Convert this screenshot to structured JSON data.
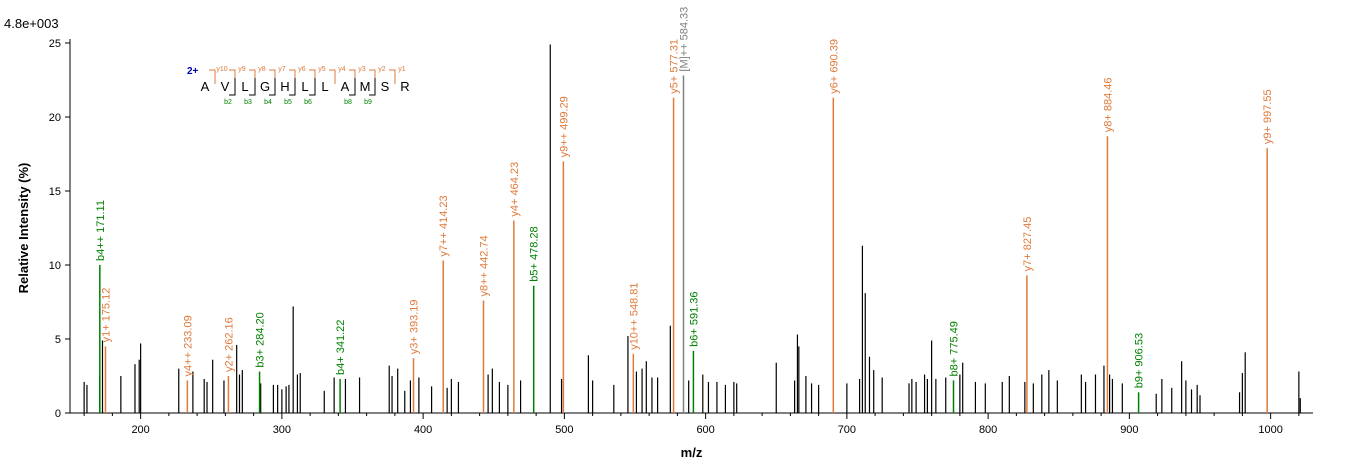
{
  "scale_label": "4.8e+003",
  "colors": {
    "b": "#008000",
    "y": "#e07a3c",
    "precursor": "#808080",
    "unassigned": "#000000",
    "charge": "#0000b0"
  },
  "sequence": {
    "charge": "2+",
    "residues": [
      "A",
      "V",
      "L",
      "G",
      "H",
      "L",
      "L",
      "A",
      "M",
      "S",
      "R"
    ],
    "y_ions": [
      [
        "y10",
        1
      ],
      [
        "y9",
        2
      ],
      [
        "y8",
        3
      ],
      [
        "y7",
        4
      ],
      [
        "y6",
        5
      ],
      [
        "y5",
        6
      ],
      [
        "y4",
        7
      ],
      [
        "y3",
        8
      ],
      [
        "y2",
        9
      ],
      [
        "y1",
        10
      ]
    ],
    "b_ions": [
      [
        "b2",
        2
      ],
      [
        "b3",
        3
      ],
      [
        "b4",
        4
      ],
      [
        "b5",
        5
      ],
      [
        "b6",
        6
      ],
      [
        "b8",
        8
      ],
      [
        "b9",
        9
      ]
    ]
  },
  "chart_data": {
    "type": "bar",
    "title": "",
    "xlabel": "m/z",
    "ylabel": "Relative   Intensity (%)",
    "xlim": [
      150,
      1030
    ],
    "ylim": [
      0,
      25
    ],
    "xticks": [
      200,
      300,
      400,
      500,
      600,
      700,
      800,
      900,
      1000
    ],
    "yticks": [
      0,
      5,
      10,
      15,
      20,
      25
    ],
    "annotated_peaks": [
      {
        "mz": 171.11,
        "intensity": 10.0,
        "ion": "b",
        "label": "b4++ 171.11"
      },
      {
        "mz": 175.12,
        "intensity": 4.5,
        "ion": "y",
        "label": "y1+ 175.12"
      },
      {
        "mz": 233.09,
        "intensity": 2.2,
        "ion": "y",
        "label": "y4++ 233.09"
      },
      {
        "mz": 262.16,
        "intensity": 2.5,
        "ion": "y",
        "label": "y2+ 262.16"
      },
      {
        "mz": 284.2,
        "intensity": 2.8,
        "ion": "b",
        "label": "b3+ 284.20"
      },
      {
        "mz": 341.22,
        "intensity": 2.3,
        "ion": "b",
        "label": "b4+ 341.22"
      },
      {
        "mz": 393.19,
        "intensity": 3.7,
        "ion": "y",
        "label": "y3+ 393.19"
      },
      {
        "mz": 414.23,
        "intensity": 10.3,
        "ion": "y",
        "label": "y7++ 414.23"
      },
      {
        "mz": 442.74,
        "intensity": 7.6,
        "ion": "y",
        "label": "y8++ 442.74"
      },
      {
        "mz": 464.23,
        "intensity": 13.0,
        "ion": "y",
        "label": "y4+ 464.23"
      },
      {
        "mz": 478.28,
        "intensity": 8.6,
        "ion": "b",
        "label": "b5+ 478.28"
      },
      {
        "mz": 499.29,
        "intensity": 17.0,
        "ion": "y",
        "label": "y9++ 499.29"
      },
      {
        "mz": 548.81,
        "intensity": 4.0,
        "ion": "y",
        "label": "y10++ 548.81"
      },
      {
        "mz": 577.31,
        "intensity": 21.3,
        "ion": "y",
        "label": "y5+ 577.31"
      },
      {
        "mz": 584.33,
        "intensity": 22.8,
        "ion": "precursor",
        "label": "[M]++ 584.33"
      },
      {
        "mz": 591.36,
        "intensity": 4.2,
        "ion": "b",
        "label": "b6+ 591.36"
      },
      {
        "mz": 690.39,
        "intensity": 21.3,
        "ion": "y",
        "label": "y6+ 690.39"
      },
      {
        "mz": 775.49,
        "intensity": 2.2,
        "ion": "b",
        "label": "b8+ 775.49"
      },
      {
        "mz": 827.45,
        "intensity": 9.3,
        "ion": "y",
        "label": "y7+ 827.45"
      },
      {
        "mz": 884.46,
        "intensity": 18.7,
        "ion": "y",
        "label": "y8+ 884.46"
      },
      {
        "mz": 906.53,
        "intensity": 1.4,
        "ion": "b",
        "label": "b9+ 906.53"
      },
      {
        "mz": 997.55,
        "intensity": 17.9,
        "ion": "y",
        "label": "y9+ 997.55"
      }
    ],
    "unassigned_peaks": [
      [
        160,
        2.1
      ],
      [
        162,
        1.9
      ],
      [
        171,
        2.5
      ],
      [
        173,
        4.9
      ],
      [
        186,
        2.5
      ],
      [
        196,
        3.3
      ],
      [
        199,
        3.6
      ],
      [
        200,
        4.7
      ],
      [
        227,
        3.0
      ],
      [
        237,
        2.8
      ],
      [
        245,
        2.3
      ],
      [
        247,
        2.1
      ],
      [
        251,
        3.6
      ],
      [
        259,
        2.2
      ],
      [
        268,
        4.6
      ],
      [
        270,
        2.6
      ],
      [
        272,
        2.9
      ],
      [
        285,
        2.0
      ],
      [
        294,
        1.9
      ],
      [
        297,
        1.9
      ],
      [
        300,
        1.6
      ],
      [
        303,
        1.8
      ],
      [
        305,
        1.9
      ],
      [
        308,
        7.2
      ],
      [
        311,
        2.6
      ],
      [
        313,
        2.7
      ],
      [
        330,
        1.5
      ],
      [
        337,
        2.4
      ],
      [
        345,
        2.3
      ],
      [
        355,
        2.4
      ],
      [
        376,
        3.2
      ],
      [
        378,
        2.5
      ],
      [
        382,
        3.0
      ],
      [
        387,
        1.5
      ],
      [
        391,
        2.2
      ],
      [
        397,
        2.4
      ],
      [
        406,
        1.8
      ],
      [
        417,
        1.7
      ],
      [
        420,
        2.3
      ],
      [
        425,
        2.1
      ],
      [
        446,
        2.6
      ],
      [
        449,
        3.0
      ],
      [
        454,
        2.1
      ],
      [
        460,
        1.9
      ],
      [
        469,
        2.2
      ],
      [
        490,
        24.9
      ],
      [
        498,
        2.3
      ],
      [
        517,
        3.9
      ],
      [
        520,
        2.2
      ],
      [
        535,
        1.9
      ],
      [
        545,
        5.2
      ],
      [
        551,
        2.8
      ],
      [
        555,
        3.0
      ],
      [
        558,
        3.5
      ],
      [
        562,
        2.4
      ],
      [
        566,
        2.4
      ],
      [
        575,
        5.9
      ],
      [
        588,
        2.2
      ],
      [
        598,
        2.6
      ],
      [
        602,
        2.1
      ],
      [
        608,
        2.1
      ],
      [
        614,
        1.9
      ],
      [
        620,
        2.1
      ],
      [
        622,
        2.0
      ],
      [
        650,
        3.4
      ],
      [
        663,
        2.2
      ],
      [
        665,
        5.3
      ],
      [
        666,
        4.5
      ],
      [
        671,
        2.5
      ],
      [
        675,
        2.0
      ],
      [
        680,
        1.9
      ],
      [
        700,
        2.0
      ],
      [
        709,
        2.3
      ],
      [
        711,
        11.3
      ],
      [
        713,
        8.1
      ],
      [
        716,
        3.8
      ],
      [
        719,
        2.9
      ],
      [
        725,
        2.4
      ],
      [
        744,
        2.0
      ],
      [
        746,
        2.3
      ],
      [
        749,
        2.1
      ],
      [
        755,
        2.6
      ],
      [
        757,
        2.3
      ],
      [
        760,
        4.9
      ],
      [
        763,
        2.3
      ],
      [
        770,
        2.4
      ],
      [
        780,
        2.6
      ],
      [
        782,
        3.4
      ],
      [
        791,
        2.1
      ],
      [
        798,
        2.0
      ],
      [
        810,
        2.1
      ],
      [
        815,
        2.5
      ],
      [
        826,
        2.1
      ],
      [
        832,
        2.0
      ],
      [
        838,
        2.6
      ],
      [
        843,
        2.9
      ],
      [
        849,
        2.2
      ],
      [
        866,
        2.6
      ],
      [
        869,
        2.1
      ],
      [
        876,
        2.6
      ],
      [
        882,
        3.2
      ],
      [
        886,
        2.6
      ],
      [
        888,
        2.3
      ],
      [
        895,
        2.0
      ],
      [
        919,
        1.3
      ],
      [
        923,
        2.3
      ],
      [
        930,
        1.7
      ],
      [
        937,
        3.5
      ],
      [
        940,
        2.2
      ],
      [
        944,
        1.6
      ],
      [
        948,
        1.9
      ],
      [
        950,
        1.2
      ],
      [
        978,
        1.4
      ],
      [
        980,
        2.7
      ],
      [
        982,
        4.1
      ],
      [
        1020,
        2.8
      ],
      [
        1021,
        1.0
      ]
    ]
  }
}
